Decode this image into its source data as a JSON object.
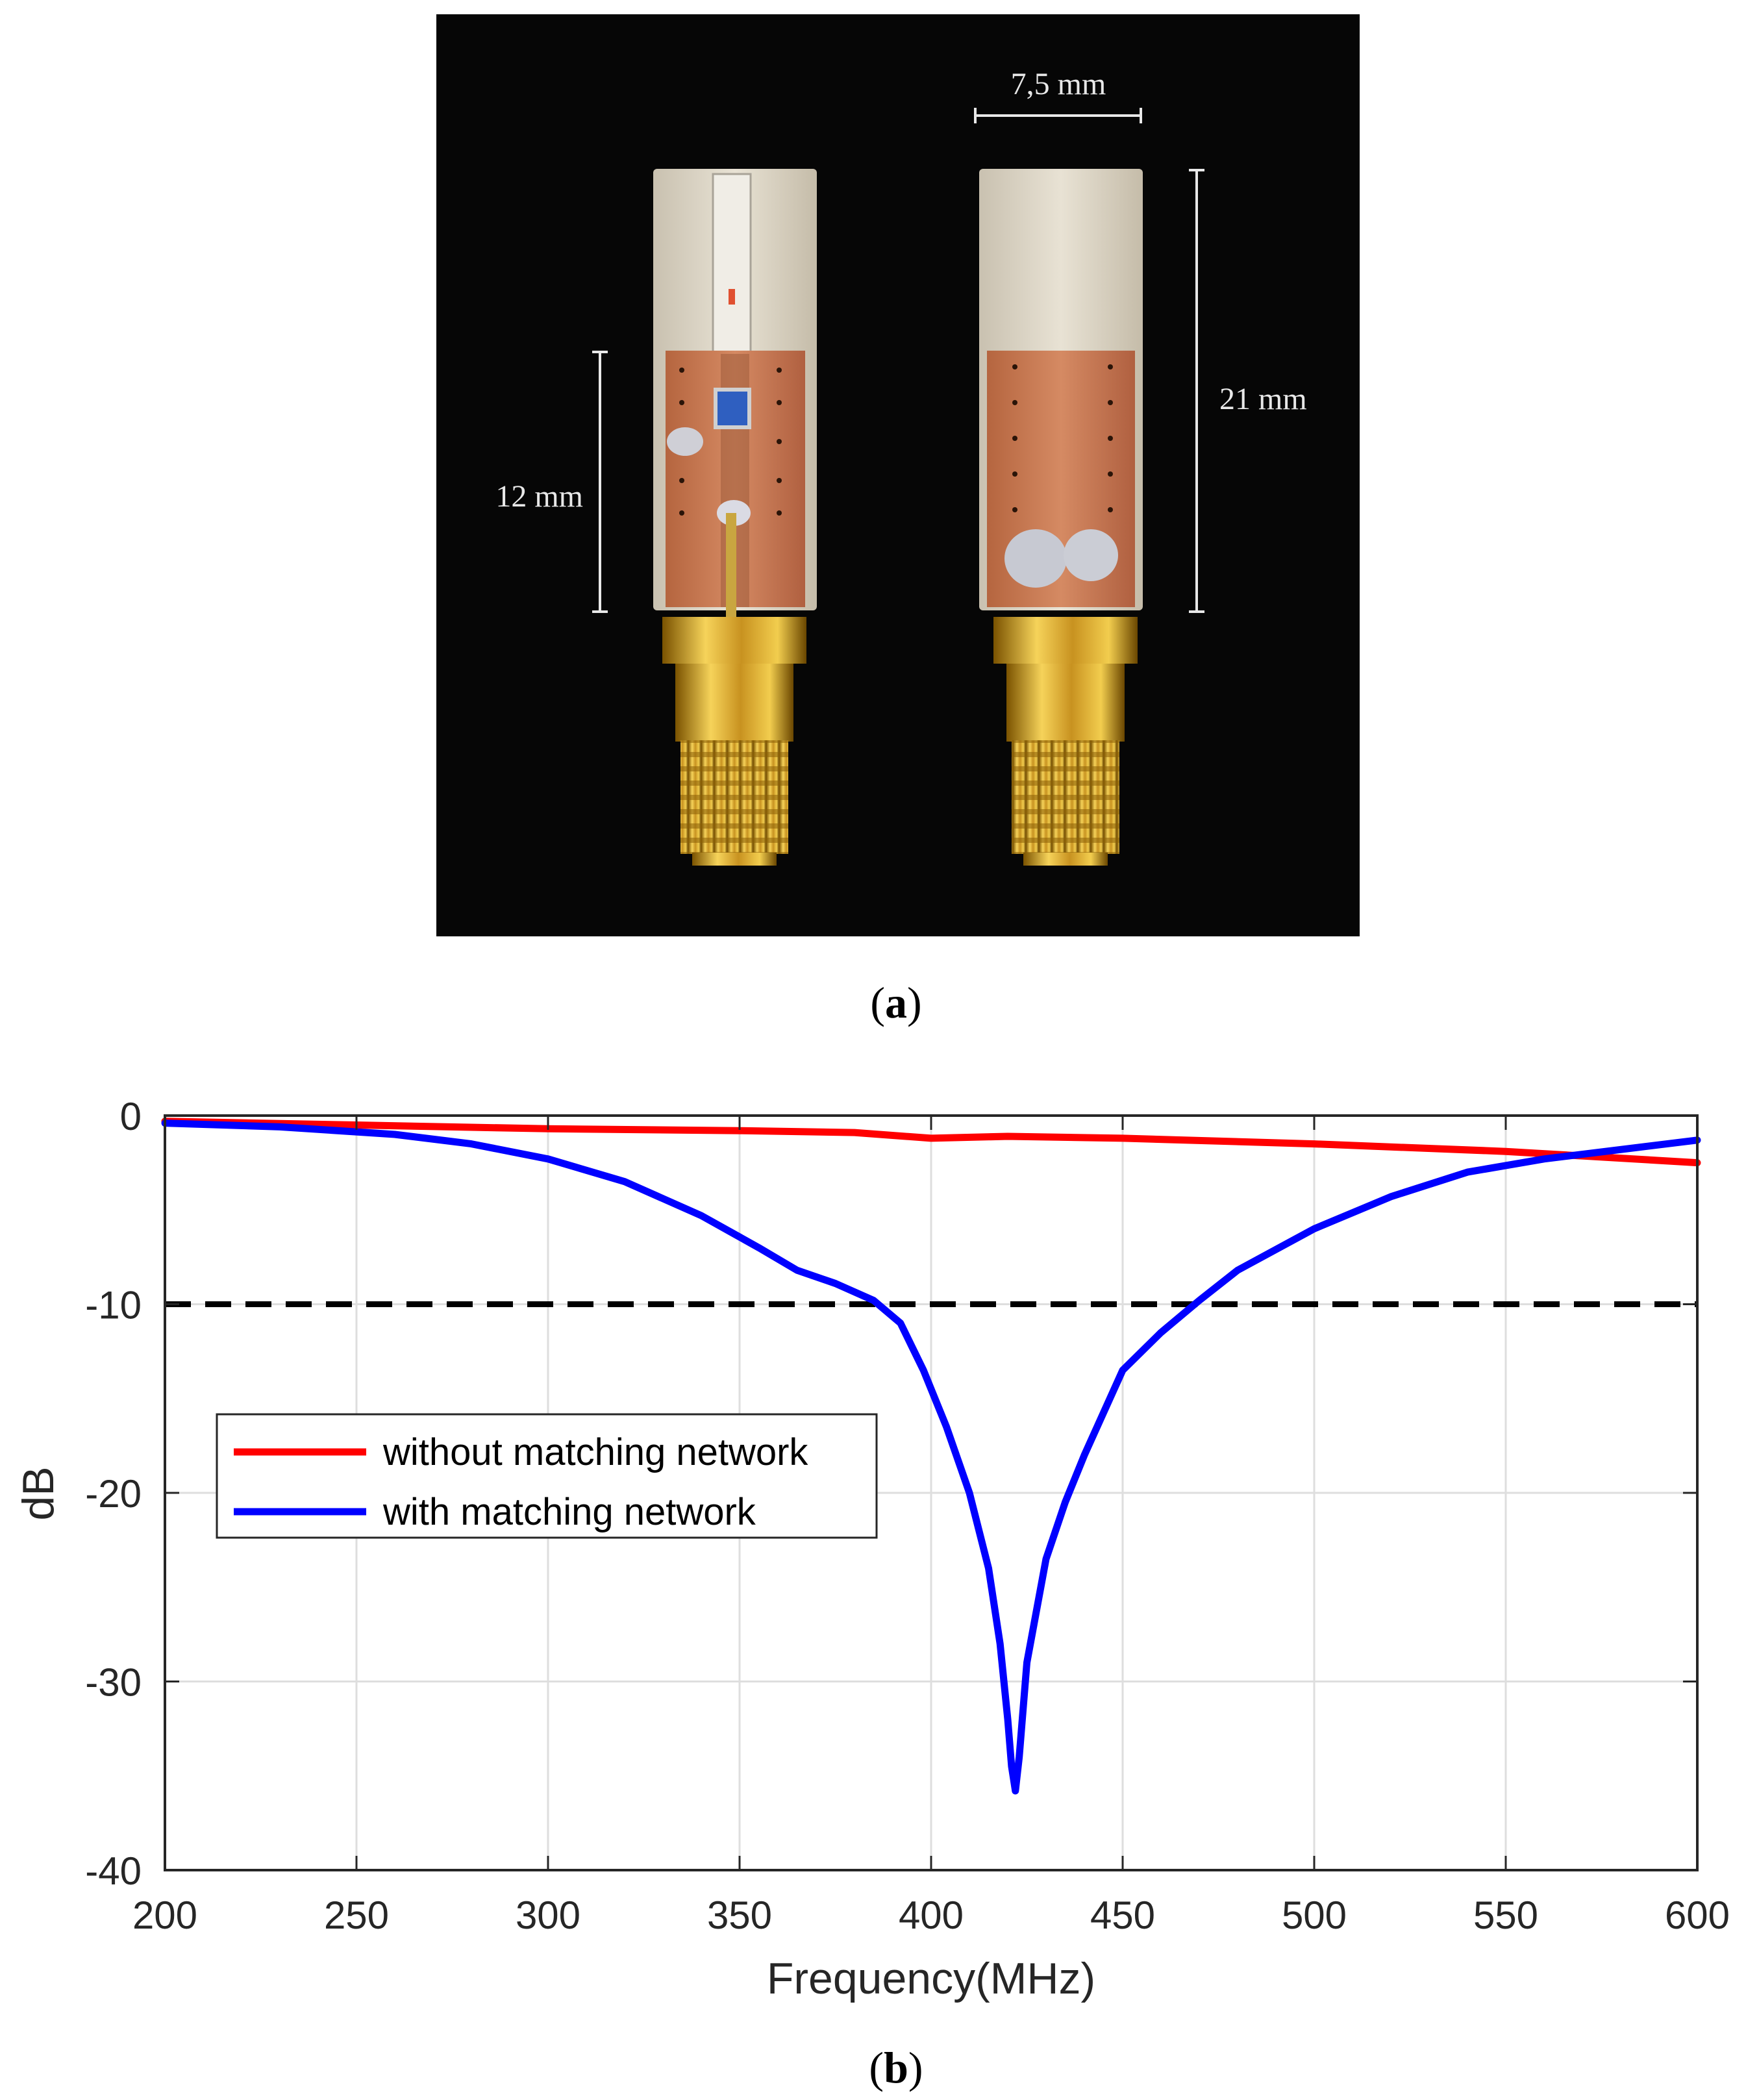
{
  "figure_a": {
    "caption": "(a)",
    "caption_letter": "a",
    "dimensions": {
      "width_label": "7,5 mm",
      "height_label": "21 mm",
      "side_label": "12 mm"
    }
  },
  "figure_b": {
    "caption": "(b)",
    "caption_letter": "b"
  },
  "chart_data": {
    "type": "line",
    "title": "",
    "xlabel": "Frequency(MHz)",
    "ylabel": "dB",
    "xlim": [
      200,
      600
    ],
    "ylim": [
      -40,
      0
    ],
    "xticks": [
      200,
      250,
      300,
      350,
      400,
      450,
      500,
      550,
      600
    ],
    "yticks": [
      0,
      -10,
      -20,
      -30,
      -40
    ],
    "grid": true,
    "legend_position": "left",
    "threshold": {
      "y": -10,
      "style": "dashed",
      "color": "#000000"
    },
    "series": [
      {
        "name": "without matching network",
        "color": "#ff0000",
        "x": [
          200,
          250,
          300,
          350,
          380,
          400,
          420,
          450,
          500,
          550,
          600
        ],
        "y": [
          -0.3,
          -0.5,
          -0.7,
          -0.8,
          -0.9,
          -1.2,
          -1.1,
          -1.2,
          -1.5,
          -1.9,
          -2.5
        ]
      },
      {
        "name": "with matching network",
        "color": "#0000ff",
        "x": [
          200,
          230,
          260,
          280,
          300,
          320,
          340,
          355,
          365,
          375,
          385,
          392,
          398,
          404,
          410,
          415,
          418,
          420,
          421,
          422,
          423,
          425,
          430,
          435,
          440,
          450,
          460,
          470,
          480,
          500,
          520,
          540,
          560,
          580,
          600
        ],
        "y": [
          -0.4,
          -0.6,
          -1.0,
          -1.5,
          -2.3,
          -3.5,
          -5.3,
          -7.0,
          -8.2,
          -8.9,
          -9.8,
          -11.0,
          -13.5,
          -16.5,
          -20.0,
          -24.0,
          -28.0,
          -32.0,
          -34.5,
          -35.8,
          -34.0,
          -29.0,
          -23.5,
          -20.5,
          -18.0,
          -13.5,
          -11.5,
          -9.8,
          -8.2,
          -6.0,
          -4.3,
          -3.0,
          -2.3,
          -1.8,
          -1.3
        ]
      }
    ]
  }
}
